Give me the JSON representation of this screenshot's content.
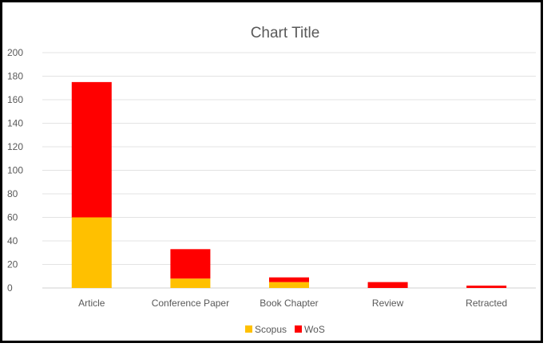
{
  "chart_data": {
    "type": "bar",
    "stacked": true,
    "title": "Chart Title",
    "xlabel": "",
    "ylabel": "",
    "categories": [
      "Article",
      "Conference Paper",
      "Book Chapter",
      "Review",
      "Retracted"
    ],
    "series": [
      {
        "name": "Scopus",
        "values": [
          60,
          8,
          5,
          0,
          0
        ],
        "color": "#FFC000"
      },
      {
        "name": "WoS",
        "values": [
          115,
          25,
          4,
          5,
          2
        ],
        "color": "#FF0000"
      }
    ],
    "ylim": [
      0,
      200
    ],
    "yticks": [
      0,
      20,
      40,
      60,
      80,
      100,
      120,
      140,
      160,
      180,
      200
    ],
    "grid": true,
    "legend": "bottom"
  }
}
